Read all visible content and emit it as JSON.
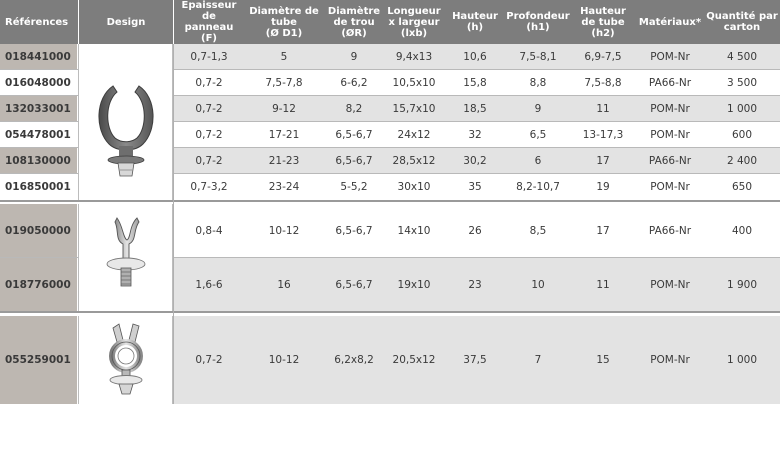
{
  "header": {
    "references": "Références",
    "design": "Design",
    "columns": [
      "Epaisseur de\npanneau\n(F)",
      "Diamètre de\ntube\n(Ø D1)",
      "Diamètre\nde trou\n(ØR)",
      "Longueur\nx largeur\n(lxb)",
      "Hauteur\n(h)",
      "Profondeur\n(h1)",
      "Hauteur\nde tube\n(h2)",
      "Matériaux*",
      "Quantité par\ncarton"
    ]
  },
  "groups": [
    {
      "design_icon": "open-clip-icon",
      "rows": [
        {
          "ref": "018441000",
          "values": [
            "0,7-1,3",
            "5",
            "9",
            "9,4x13",
            "10,6",
            "7,5-8,1",
            "6,9-7,5",
            "POM-Nr",
            "4 500"
          ]
        },
        {
          "ref": "016048000",
          "values": [
            "0,7-2",
            "7,5-7,8",
            "6-6,2",
            "10,5x10",
            "15,8",
            "8,8",
            "7,5-8,8",
            "PA66-Nr",
            "3 500"
          ]
        },
        {
          "ref": "132033001",
          "values": [
            "0,7-2",
            "9-12",
            "8,2",
            "15,7x10",
            "18,5",
            "9",
            "11",
            "POM-Nr",
            "1 000"
          ]
        },
        {
          "ref": "054478001",
          "values": [
            "0,7-2",
            "17-21",
            "6,5-6,7",
            "24x12",
            "32",
            "6,5",
            "13-17,3",
            "POM-Nr",
            "600"
          ]
        },
        {
          "ref": "108130000",
          "values": [
            "0,7-2",
            "21-23",
            "6,5-6,7",
            "28,5x12",
            "30,2",
            "6",
            "17",
            "PA66-Nr",
            "2 400"
          ]
        },
        {
          "ref": "016850001",
          "values": [
            "0,7-3,2",
            "23-24",
            "5-5,2",
            "30x10",
            "35",
            "8,2-10,7",
            "19",
            "POM-Nr",
            "650"
          ]
        }
      ]
    },
    {
      "design_icon": "clip-with-disc-icon",
      "rows": [
        {
          "ref": "019050000",
          "values": [
            "0,8-4",
            "10-12",
            "6,5-6,7",
            "14x10",
            "26",
            "8,5",
            "17",
            "PA66-Nr",
            "400"
          ]
        },
        {
          "ref": "018776000",
          "values": [
            "1,6-6",
            "16",
            "6,5-6,7",
            "19x10",
            "23",
            "10",
            "11",
            "POM-Nr",
            "1 900"
          ]
        }
      ]
    },
    {
      "design_icon": "closed-clip-icon",
      "rows": [
        {
          "ref": "055259001",
          "values": [
            "0,7-2",
            "10-12",
            "6,2x8,2",
            "20,5x12",
            "37,5",
            "7",
            "15",
            "POM-Nr",
            "1 000"
          ]
        }
      ]
    }
  ]
}
